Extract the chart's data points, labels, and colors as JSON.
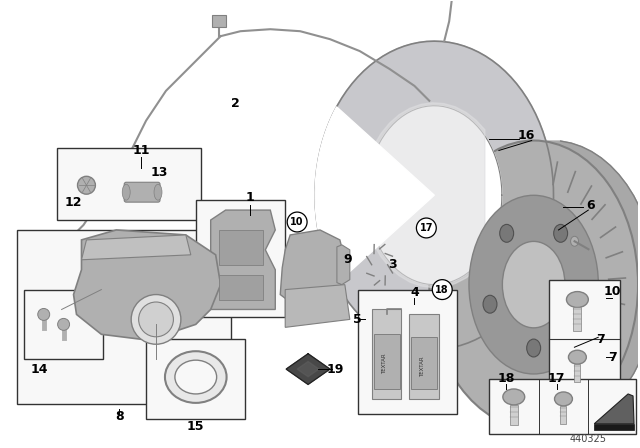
{
  "background_color": "#ffffff",
  "fig_width": 6.4,
  "fig_height": 4.48,
  "dpi": 100,
  "catalog_number": "440325",
  "gray_light": "#d0d0d0",
  "gray_mid": "#b0b0b0",
  "gray_dark": "#808080",
  "gray_vdark": "#505050",
  "wire_color": "#909090",
  "box_edge": "#333333",
  "box_face": "#f8f8f8"
}
